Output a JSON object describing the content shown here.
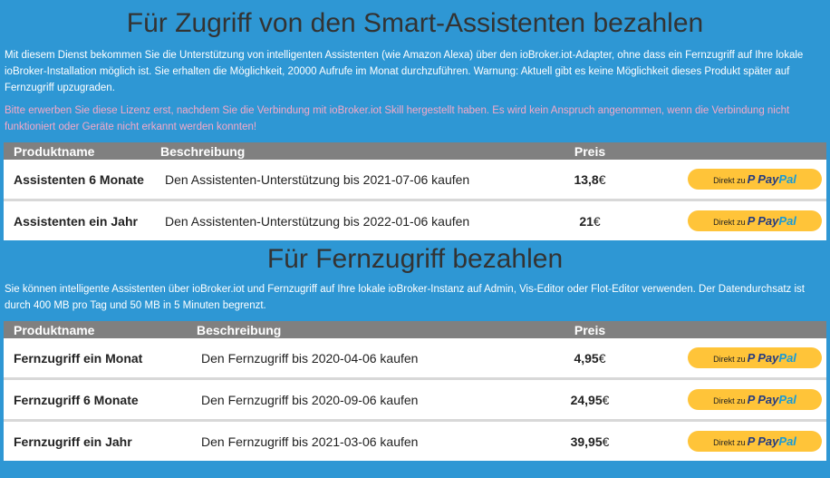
{
  "assistants": {
    "title": "Für Zugriff von den Smart-Assistenten bezahlen",
    "description": "Mit diesem Dienst bekommen Sie die Unterstützung von intelligenten Assistenten (wie Amazon Alexa) über den ioBroker.iot-Adapter, ohne dass ein Fernzugriff auf Ihre lokale ioBroker-Installation möglich ist. Sie erhalten die Möglichkeit, 20000 Aufrufe im Monat durchzuführen. Warnung: Aktuell gibt es keine Möglichkeit dieses Produkt später auf Fernzugriff upzugraden.",
    "warning": "Bitte erwerben Sie diese Lizenz erst, nachdem Sie die Verbindung mit ioBroker.iot Skill hergestellt haben. Es wird kein Anspruch angenommen, wenn die Verbindung nicht funktioniert oder Geräte nicht erkannt werden konnten!",
    "headers": {
      "name": "Produktname",
      "desc": "Beschreibung",
      "price": "Preis"
    },
    "rows": [
      {
        "name": "Assistenten 6 Monate",
        "desc": "Den Assistenten-Unterstützung bis 2021-07-06 kaufen",
        "price_num": "13,8",
        "currency": "€"
      },
      {
        "name": "Assistenten ein Jahr",
        "desc": "Den Assistenten-Unterstützung bis 2022-01-06 kaufen",
        "price_num": "21",
        "currency": "€"
      }
    ]
  },
  "remote": {
    "title": "Für Fernzugriff bezahlen",
    "description": "Sie können intelligente Assistenten über ioBroker.iot und Fernzugriff auf Ihre lokale ioBroker-Instanz auf Admin, Vis-Editor oder Flot-Editor verwenden. Der Datendurchsatz ist durch 400 MB pro Tag und 50 MB in 5 Minuten begrenzt.",
    "headers": {
      "name": "Produktname",
      "desc": "Beschreibung",
      "price": "Preis"
    },
    "rows": [
      {
        "name": "Fernzugriff ein Monat",
        "desc": "Den Fernzugriff bis 2020-04-06 kaufen",
        "price_num": "4,95",
        "currency": "€"
      },
      {
        "name": "Fernzugriff 6 Monate",
        "desc": "Den Fernzugriff bis 2020-09-06 kaufen",
        "price_num": "24,95",
        "currency": "€"
      },
      {
        "name": "Fernzugriff ein Jahr",
        "desc": "Den Fernzugriff bis 2021-03-06 kaufen",
        "price_num": "39,95",
        "currency": "€"
      }
    ]
  },
  "paypal": {
    "prefix": "Direkt zu",
    "brand_pay": "Pay",
    "brand_pal": "Pal",
    "icon": "paypal-icon"
  },
  "colors": {
    "background": "#2e97d4",
    "header_bg": "#808080",
    "title": "#333333",
    "warning": "#f5a9c8",
    "paypal_button": "#ffc439"
  }
}
